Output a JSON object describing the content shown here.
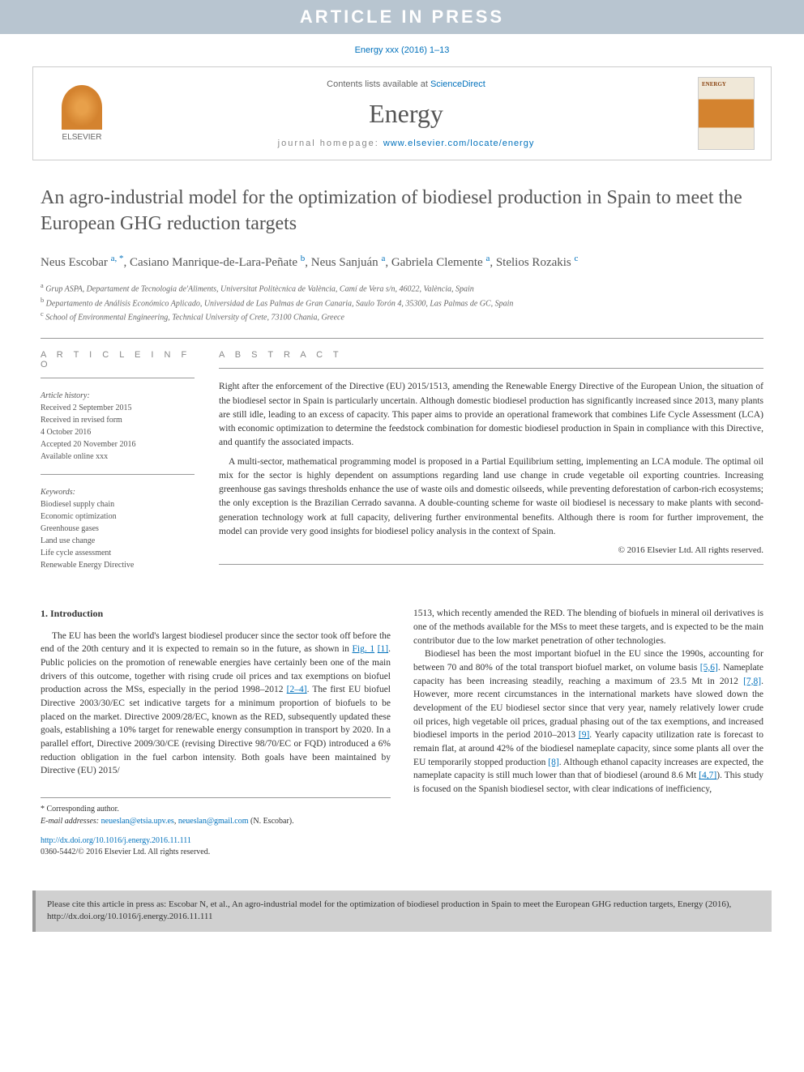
{
  "banner": "ARTICLE IN PRESS",
  "citation_header": "Energy xxx (2016) 1–13",
  "journal_box": {
    "contents_prefix": "Contents lists available at ",
    "contents_link": "ScienceDirect",
    "journal_name": "Energy",
    "homepage_prefix": "journal homepage: ",
    "homepage_link": "www.elsevier.com/locate/energy",
    "publisher_label": "ELSEVIER"
  },
  "title": "An agro-industrial model for the optimization of biodiesel production in Spain to meet the European GHG reduction targets",
  "authors_html": "Neus Escobar <sup>a, *</sup>, Casiano Manrique-de-Lara-Peñate <sup>b</sup>, Neus Sanjuán <sup>a</sup>, Gabriela Clemente <sup>a</sup>, Stelios Rozakis <sup>c</sup>",
  "affiliations": [
    {
      "sup": "a",
      "text": "Grup ASPA, Departament de Tecnologia de'Aliments, Universitat Politècnica de València, Camí de Vera s/n, 46022, València, Spain"
    },
    {
      "sup": "b",
      "text": "Departamento de Análisis Económico Aplicado, Universidad de Las Palmas de Gran Canaria, Saulo Torón 4, 35300, Las Palmas de GC, Spain"
    },
    {
      "sup": "c",
      "text": "School of Environmental Engineering, Technical University of Crete, 73100 Chania, Greece"
    }
  ],
  "article_info": {
    "heading": "A R T I C L E  I N F O",
    "history_label": "Article history:",
    "history": [
      "Received 2 September 2015",
      "Received in revised form",
      "4 October 2016",
      "Accepted 20 November 2016",
      "Available online xxx"
    ],
    "keywords_label": "Keywords:",
    "keywords": [
      "Biodiesel supply chain",
      "Economic optimization",
      "Greenhouse gases",
      "Land use change",
      "Life cycle assessment",
      "Renewable Energy Directive"
    ]
  },
  "abstract": {
    "heading": "A B S T R A C T",
    "p1": "Right after the enforcement of the Directive (EU) 2015/1513, amending the Renewable Energy Directive of the European Union, the situation of the biodiesel sector in Spain is particularly uncertain. Although domestic biodiesel production has significantly increased since 2013, many plants are still idle, leading to an excess of capacity. This paper aims to provide an operational framework that combines Life Cycle Assessment (LCA) with economic optimization to determine the feedstock combination for domestic biodiesel production in Spain in compliance with this Directive, and quantify the associated impacts.",
    "p2": "A multi-sector, mathematical programming model is proposed in a Partial Equilibrium setting, implementing an LCA module. The optimal oil mix for the sector is highly dependent on assumptions regarding land use change in crude vegetable oil exporting countries. Increasing greenhouse gas savings thresholds enhance the use of waste oils and domestic oilseeds, while preventing deforestation of carbon-rich ecosystems; the only exception is the Brazilian Cerrado savanna. A double-counting scheme for waste oil biodiesel is necessary to make plants with second-generation technology work at full capacity, delivering further environmental benefits. Although there is room for further improvement, the model can provide very good insights for biodiesel policy analysis in the context of Spain.",
    "copyright": "© 2016 Elsevier Ltd. All rights reserved."
  },
  "body": {
    "section_num": "1.",
    "section_title": "Introduction",
    "col1_p1_a": "The EU has been the world's largest biodiesel producer since the sector took off before the end of the 20th century and it is expected to remain so in the future, as shown in ",
    "col1_fig": "Fig. 1",
    "col1_ref1": "[1]",
    "col1_p1_b": ". Public policies on the promotion of renewable energies have certainly been one of the main drivers of this outcome, together with rising crude oil prices and tax exemptions on biofuel production across the MSs, especially in the period 1998–2012 ",
    "col1_ref2": "[2–4]",
    "col1_p1_c": ". The first EU biofuel Directive 2003/30/EC set indicative targets for a minimum proportion of biofuels to be placed on the market. Directive 2009/28/EC, known as the RED, subsequently updated these goals, establishing a 10% target for renewable energy consumption in transport by 2020. In a parallel effort, Directive 2009/30/CE (revising Directive 98/70/EC or FQD) introduced a 6% reduction obligation in the fuel carbon intensity. Both goals have been maintained by Directive (EU) 2015/",
    "col2_p1": "1513, which recently amended the RED. The blending of biofuels in mineral oil derivatives is one of the methods available for the MSs to meet these targets, and is expected to be the main contributor due to the low market penetration of other technologies.",
    "col2_p2_a": "Biodiesel has been the most important biofuel in the EU since the 1990s, accounting for between 70 and 80% of the total transport biofuel market, on volume basis ",
    "col2_ref56": "[5,6]",
    "col2_p2_b": ". Nameplate capacity has been increasing steadily, reaching a maximum of 23.5 Mt in 2012 ",
    "col2_ref78": "[7,8]",
    "col2_p2_c": ". However, more recent circumstances in the international markets have slowed down the development of the EU biodiesel sector since that very year, namely relatively lower crude oil prices, high vegetable oil prices, gradual phasing out of the tax exemptions, and increased biodiesel imports in the period 2010–2013 ",
    "col2_ref9": "[9]",
    "col2_p2_d": ". Yearly capacity utilization rate is forecast to remain flat, at around 42% of the biodiesel nameplate capacity, since some plants all over the EU temporarily stopped production ",
    "col2_ref8": "[8]",
    "col2_p2_e": ". Although ethanol capacity increases are expected, the nameplate capacity is still much lower than that of biodiesel (around 8.6 Mt ",
    "col2_ref47": "[4,7]",
    "col2_p2_f": "). This study is focused on the Spanish biodiesel sector, with clear indications of inefficiency,"
  },
  "corresp": {
    "star": "* Corresponding author.",
    "email_label": "E-mail addresses:",
    "email1": "neueslan@etsia.upv.es",
    "email2": "neueslan@gmail.com",
    "email_tail": " (N. Escobar)."
  },
  "doi": {
    "url": "http://dx.doi.org/10.1016/j.energy.2016.11.111",
    "issn": "0360-5442/© 2016 Elsevier Ltd. All rights reserved."
  },
  "cite_footer": "Please cite this article in press as: Escobar N, et al., An agro-industrial model for the optimization of biodiesel production in Spain to meet the European GHG reduction targets, Energy (2016), http://dx.doi.org/10.1016/j.energy.2016.11.111"
}
